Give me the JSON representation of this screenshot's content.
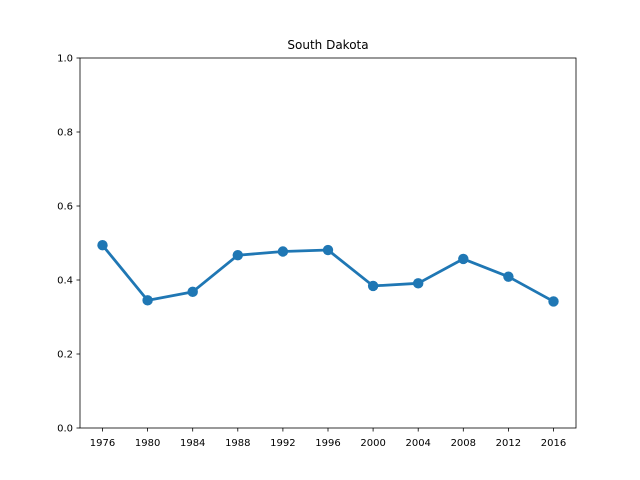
{
  "chart_data": {
    "type": "line",
    "title": "South Dakota",
    "xlabel": "",
    "ylabel": "",
    "categories": [
      "1976",
      "1980",
      "1984",
      "1988",
      "1992",
      "1996",
      "2000",
      "2004",
      "2008",
      "2012",
      "2016"
    ],
    "series": [
      {
        "values": [
          0.494,
          0.345,
          0.368,
          0.467,
          0.477,
          0.481,
          0.384,
          0.391,
          0.457,
          0.409,
          0.342
        ]
      }
    ],
    "y_ticks": [
      "0.0",
      "0.2",
      "0.4",
      "0.6",
      "0.8",
      "1.0"
    ],
    "ylim": [
      0,
      1
    ],
    "grid": false,
    "legend": "none",
    "colors": {
      "line": "#1f77b4",
      "axes": "#000000",
      "background": "#ffffff"
    }
  }
}
